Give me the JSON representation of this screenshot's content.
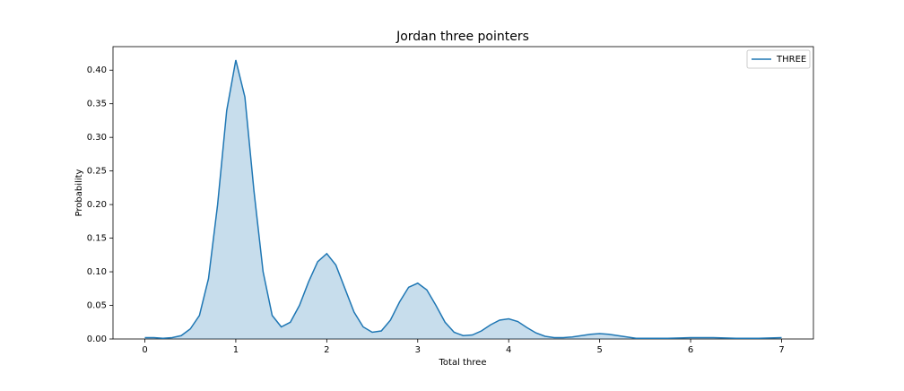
{
  "chart_data": {
    "type": "kde",
    "title": "Jordan three pointers",
    "xlabel": "Total three",
    "ylabel": "Probability",
    "x": [
      0,
      0.1,
      0.2,
      0.3,
      0.4,
      0.5,
      0.6,
      0.7,
      0.8,
      0.9,
      1.0,
      1.1,
      1.2,
      1.3,
      1.4,
      1.5,
      1.6,
      1.7,
      1.8,
      1.9,
      2.0,
      2.1,
      2.2,
      2.3,
      2.4,
      2.5,
      2.6,
      2.7,
      2.8,
      2.9,
      3.0,
      3.1,
      3.2,
      3.3,
      3.4,
      3.5,
      3.6,
      3.7,
      3.8,
      3.9,
      4.0,
      4.1,
      4.2,
      4.3,
      4.4,
      4.5,
      4.6,
      4.7,
      4.8,
      4.9,
      5.0,
      5.1,
      5.2,
      5.3,
      5.4,
      5.5,
      5.75,
      6.0,
      6.25,
      6.5,
      6.75,
      7.0
    ],
    "series": [
      {
        "name": "THREE",
        "color": "#1f77b4",
        "values": [
          0.002,
          0.002,
          0.001,
          0.002,
          0.005,
          0.015,
          0.035,
          0.09,
          0.2,
          0.34,
          0.415,
          0.36,
          0.22,
          0.1,
          0.035,
          0.018,
          0.025,
          0.05,
          0.085,
          0.115,
          0.127,
          0.11,
          0.075,
          0.04,
          0.018,
          0.01,
          0.012,
          0.028,
          0.055,
          0.077,
          0.083,
          0.073,
          0.05,
          0.025,
          0.01,
          0.005,
          0.006,
          0.012,
          0.021,
          0.028,
          0.03,
          0.026,
          0.017,
          0.009,
          0.004,
          0.002,
          0.002,
          0.003,
          0.005,
          0.007,
          0.008,
          0.007,
          0.005,
          0.003,
          0.001,
          0.001,
          0.001,
          0.002,
          0.002,
          0.001,
          0.001,
          0.002
        ]
      }
    ],
    "xlim": [
      -0.35,
      7.35
    ],
    "ylim": [
      0,
      0.435
    ],
    "xticks": [
      0,
      1,
      2,
      3,
      4,
      5,
      6,
      7
    ],
    "yticks": [
      {
        "value": 0,
        "label": "0.00"
      },
      {
        "value": 0.05,
        "label": "0.05"
      },
      {
        "value": 0.1,
        "label": "0.10"
      },
      {
        "value": 0.15,
        "label": "0.15"
      },
      {
        "value": 0.2,
        "label": "0.20"
      },
      {
        "value": 0.25,
        "label": "0.25"
      },
      {
        "value": 0.3,
        "label": "0.30"
      },
      {
        "value": 0.35,
        "label": "0.35"
      },
      {
        "value": 0.4,
        "label": "0.40"
      }
    ],
    "legend": "upper right",
    "fill": true
  }
}
